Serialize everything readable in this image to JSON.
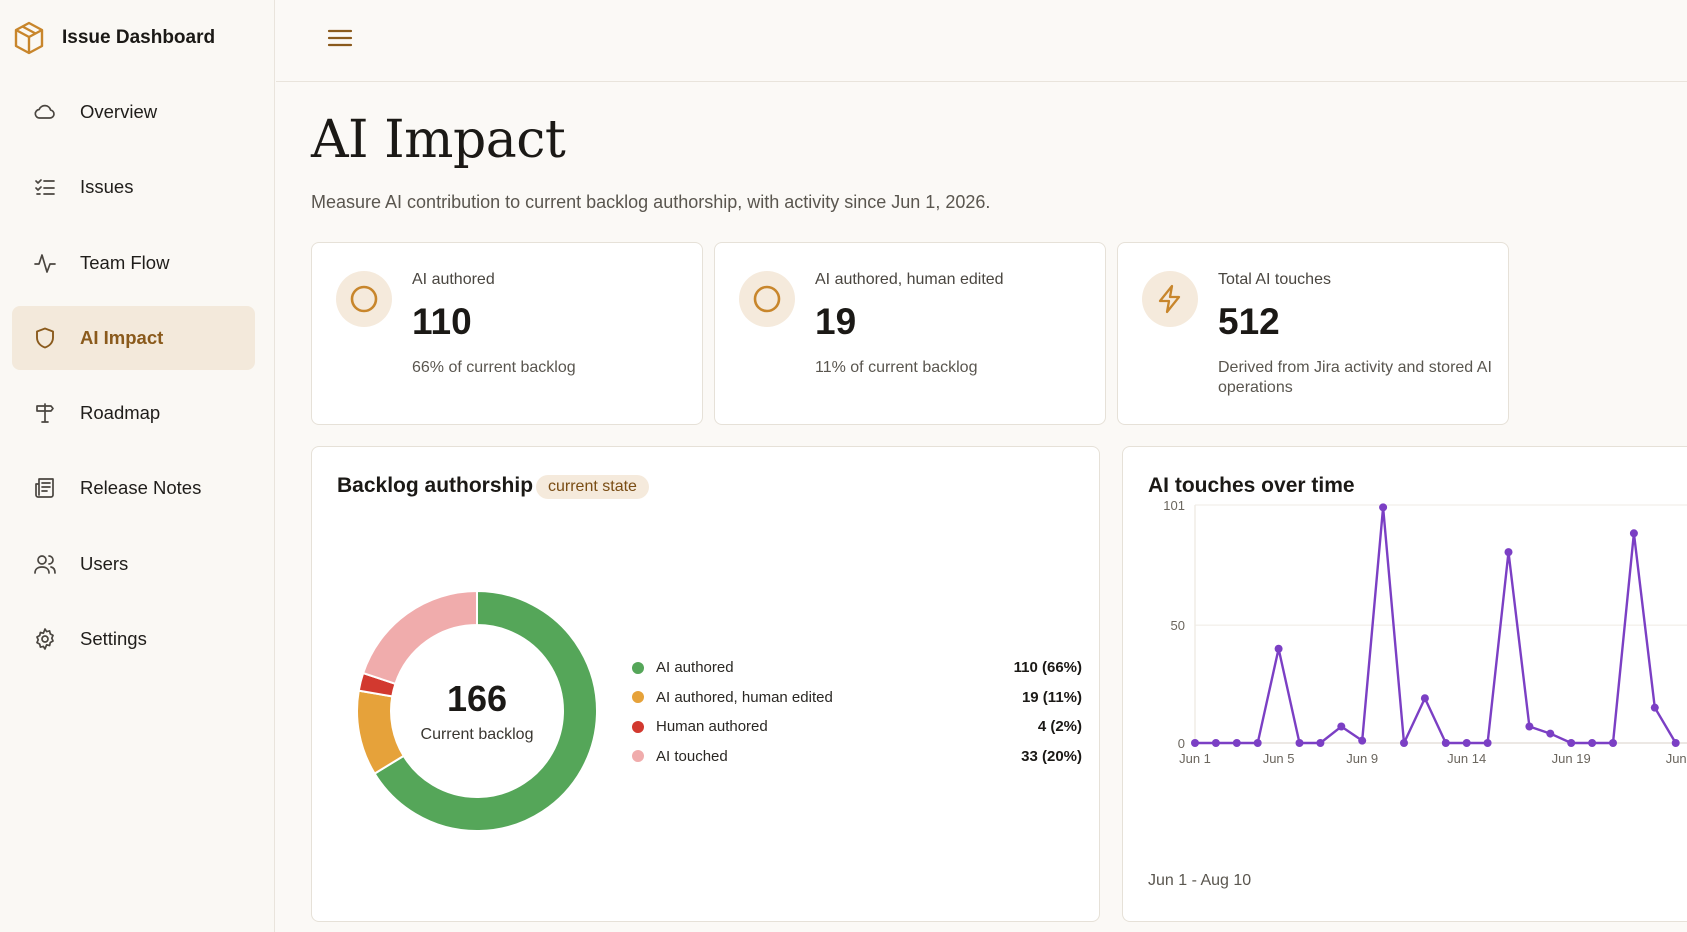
{
  "app": {
    "title": "Issue Dashboard"
  },
  "sidebar": {
    "items": [
      {
        "label": "Overview",
        "icon": "cloud-icon",
        "active": false
      },
      {
        "label": "Issues",
        "icon": "checklist-icon",
        "active": false
      },
      {
        "label": "Team Flow",
        "icon": "activity-icon",
        "active": false
      },
      {
        "label": "AI Impact",
        "icon": "shield-icon",
        "active": true
      },
      {
        "label": "Roadmap",
        "icon": "signpost-icon",
        "active": false
      },
      {
        "label": "Release Notes",
        "icon": "newspaper-icon",
        "active": false
      },
      {
        "label": "Users",
        "icon": "users-icon",
        "active": false
      },
      {
        "label": "Settings",
        "icon": "gear-icon",
        "active": false
      }
    ]
  },
  "page": {
    "title": "AI Impact",
    "subtitle": "Measure AI contribution to current backlog authorship, with activity since Jun 1, 2026."
  },
  "stats": [
    {
      "label": "AI authored",
      "value": "110",
      "note": "66% of current backlog",
      "icon": "circle-icon"
    },
    {
      "label": "AI authored, human edited",
      "value": "19",
      "note": "11% of current backlog",
      "icon": "circle-icon"
    },
    {
      "label": "Total AI touches",
      "value": "512",
      "note": "Derived from Jira activity and stored AI operations",
      "icon": "lightning-icon"
    }
  ],
  "colors": {
    "accent": "#c8862c",
    "ai_authored": "#55a659",
    "ai_human_edited": "#e6a23a",
    "human_authored": "#d2392f",
    "ai_touched": "#f0acac",
    "line": "#7b3fc4"
  },
  "backlog": {
    "title": "Backlog authorship",
    "badge": "current state",
    "center_value": "166",
    "center_label": "Current backlog",
    "legend": [
      {
        "name": "AI authored",
        "value": "110 (66%)"
      },
      {
        "name": "AI authored, human edited",
        "value": "19 (11%)"
      },
      {
        "name": "Human authored",
        "value": "4 (2%)"
      },
      {
        "name": "AI touched",
        "value": "33 (20%)"
      }
    ]
  },
  "touches": {
    "title": "AI touches over time",
    "range": "Jun 1 - Aug 10"
  },
  "chart_data": [
    {
      "type": "pie",
      "title": "Backlog authorship",
      "categories": [
        "AI authored",
        "AI authored, human edited",
        "Human authored",
        "AI touched"
      ],
      "values": [
        110,
        19,
        4,
        33
      ],
      "total": 166
    },
    {
      "type": "line",
      "title": "AI touches over time",
      "x": [
        "Jun 1",
        "Jun 2",
        "Jun 3",
        "Jun 4",
        "Jun 5",
        "Jun 6",
        "Jun 7",
        "Jun 8",
        "Jun 9",
        "Jun 10",
        "Jun 11",
        "Jun 12",
        "Jun 13",
        "Jun 14",
        "Jun 15",
        "Jun 16",
        "Jun 17",
        "Jun 18",
        "Jun 19",
        "Jun 20",
        "Jun 21",
        "Jun 22",
        "Jun 23",
        "Jun 24"
      ],
      "values": [
        0,
        0,
        0,
        0,
        40,
        0,
        0,
        7,
        1,
        100,
        0,
        19,
        0,
        0,
        0,
        81,
        7,
        4,
        0,
        0,
        0,
        89,
        15,
        0
      ],
      "x_tick_labels": [
        "Jun 1",
        "Jun 5",
        "Jun 9",
        "Jun 14",
        "Jun 19",
        "Jun"
      ],
      "y_ticks": [
        "0",
        "50",
        "101"
      ],
      "ylim": [
        0,
        101
      ],
      "grid": true
    }
  ]
}
